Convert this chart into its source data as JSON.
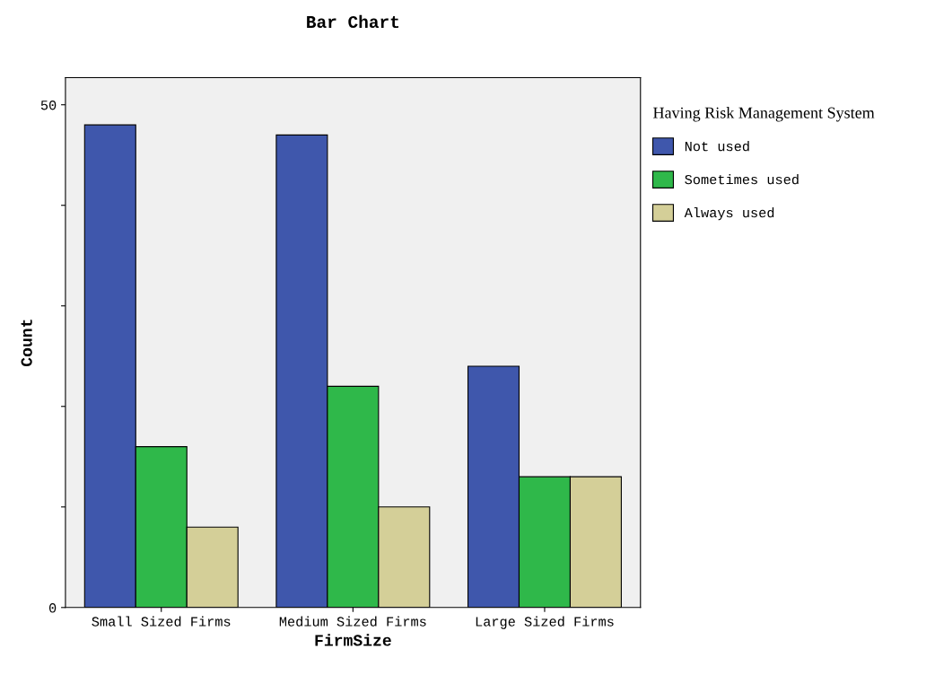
{
  "chart_data": {
    "type": "bar",
    "title": "Bar Chart",
    "xlabel": "FirmSize",
    "ylabel": "Count",
    "legend_title": "Having Risk Management System",
    "categories": [
      "Small Sized Firms",
      "Medium Sized Firms",
      "Large Sized Firms"
    ],
    "series": [
      {
        "name": "Not used",
        "color": "#3f57ac",
        "values": [
          48,
          47,
          24
        ]
      },
      {
        "name": "Sometimes used",
        "color": "#2fb84a",
        "values": [
          16,
          22,
          13
        ]
      },
      {
        "name": "Always used",
        "color": "#d4cf98",
        "values": [
          8,
          10,
          13
        ]
      }
    ],
    "ylim": [
      0,
      52.7
    ],
    "yticks": [
      0,
      {
        "value": 10,
        "label": null
      },
      {
        "value": 20,
        "label": null
      },
      {
        "value": 30,
        "label": null
      },
      {
        "value": 40,
        "label": null
      },
      50
    ],
    "grid": false,
    "legend": "right"
  }
}
